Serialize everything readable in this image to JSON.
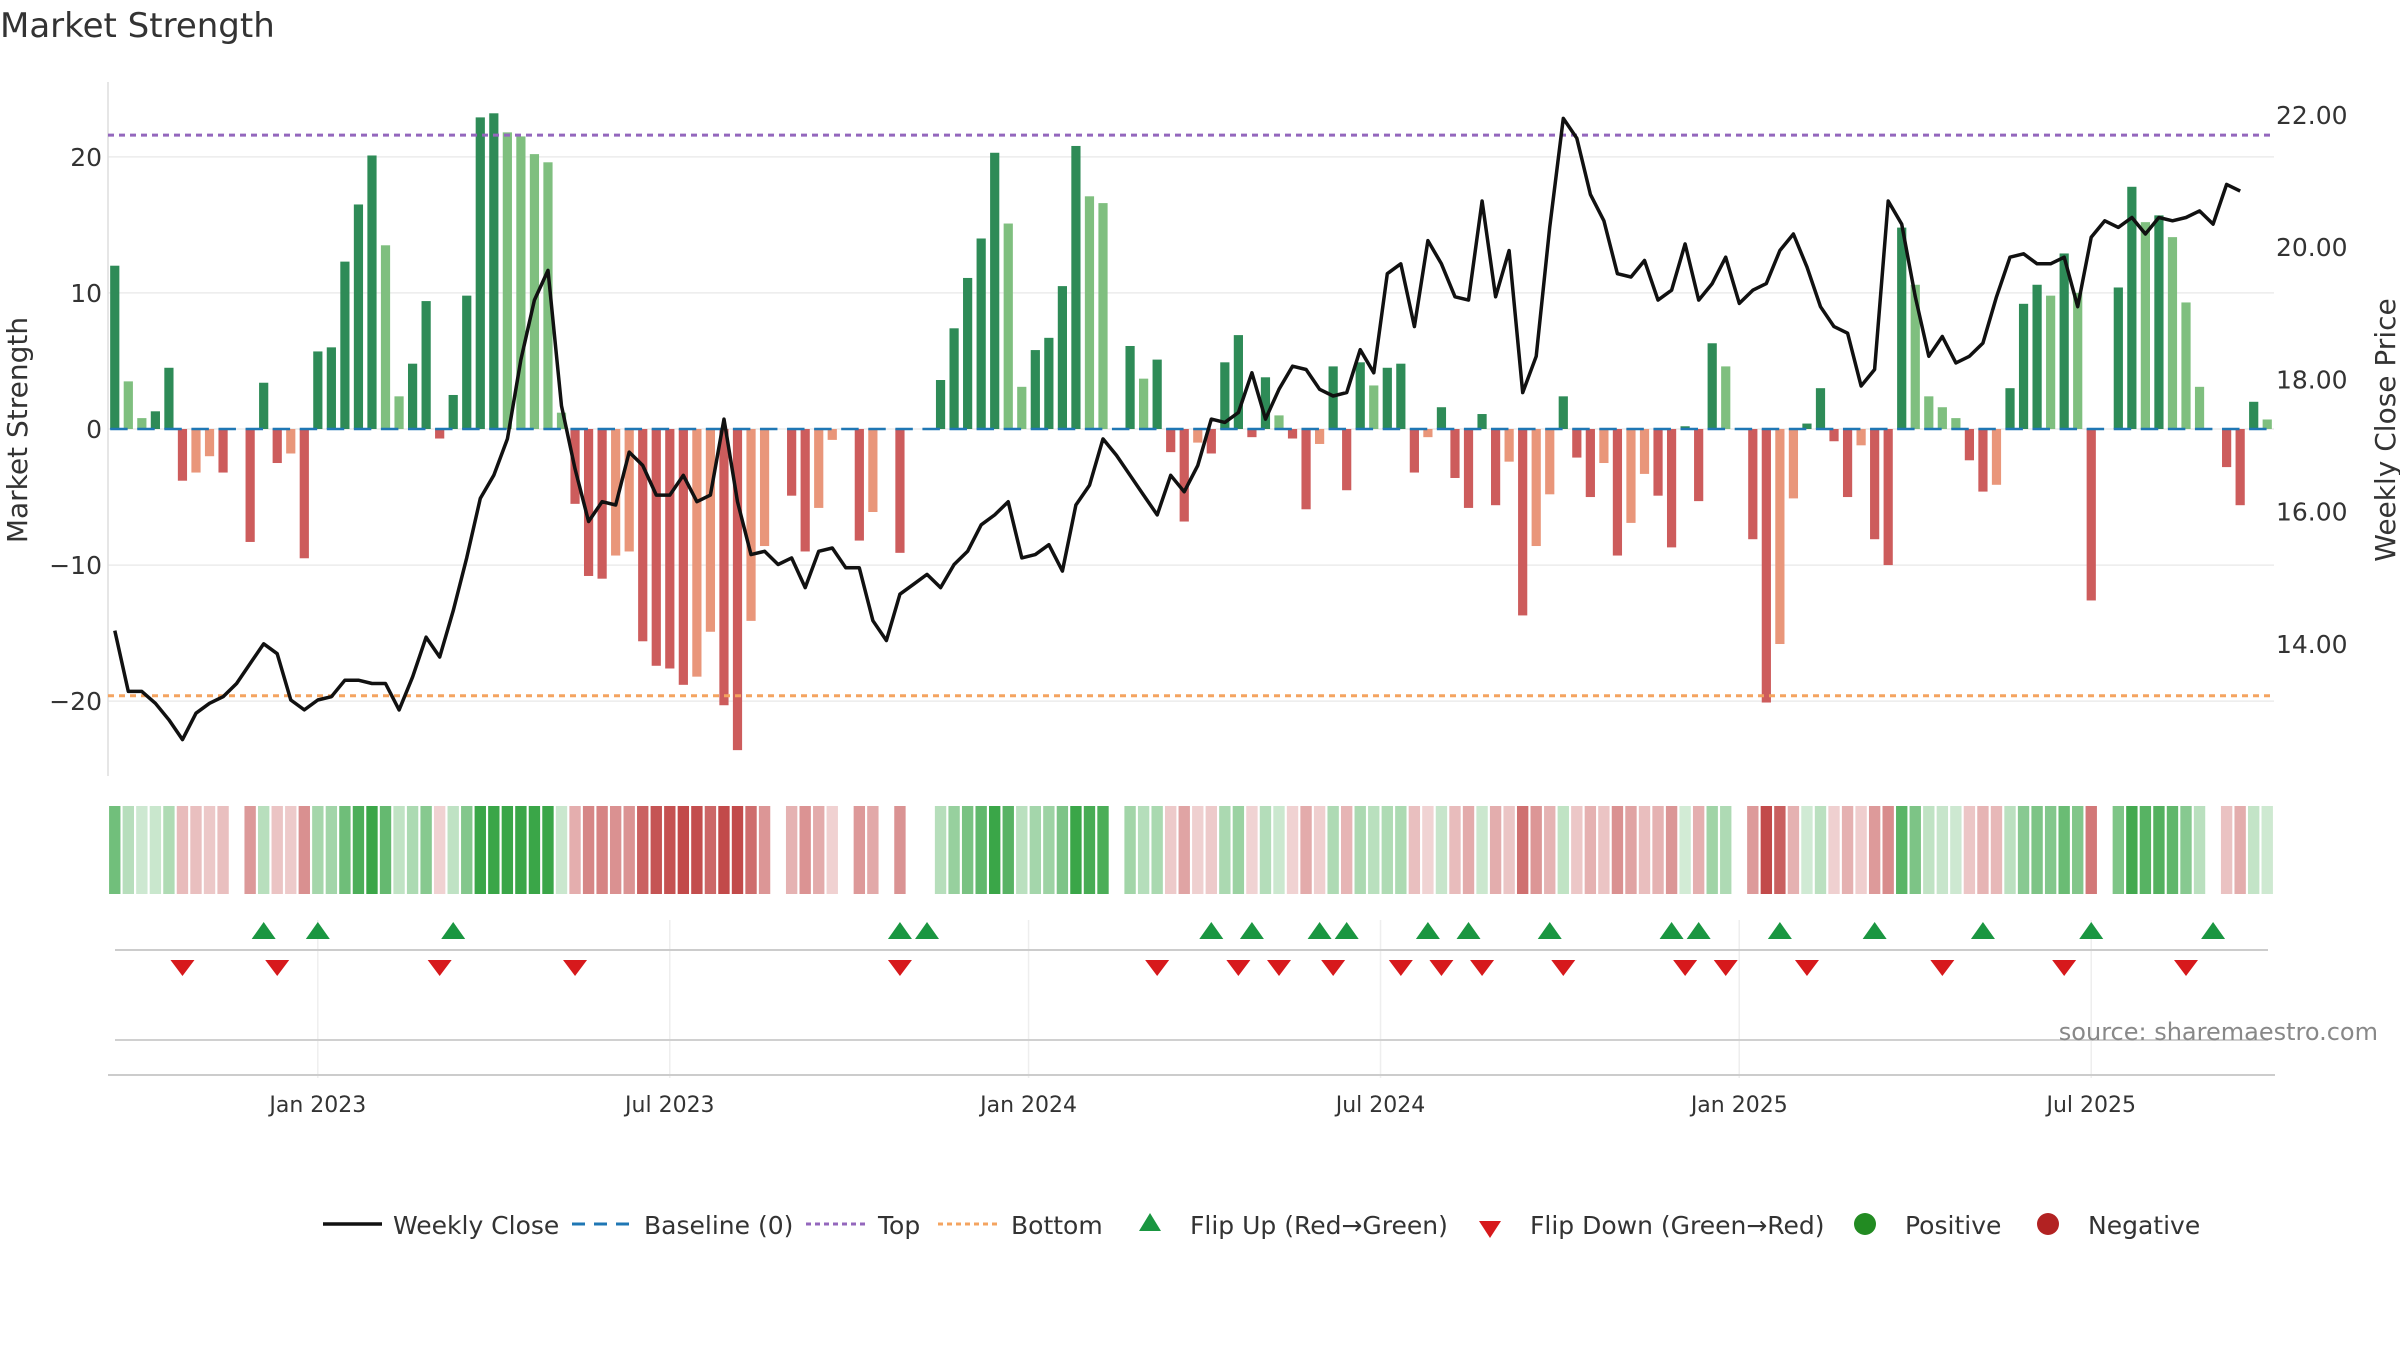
{
  "chart_data": {
    "type": "bar",
    "title": "Market Strength",
    "ylabel": "Market Strength",
    "y2label": "Weekly Close Price",
    "ylim": [
      -25.5,
      25.5
    ],
    "y2lim": [
      12.0,
      22.5
    ],
    "yticks": [
      20,
      10,
      0,
      -10,
      -20
    ],
    "ytick_labels": [
      "20",
      "10",
      "0",
      "−10",
      "−20"
    ],
    "y2ticks": [
      22,
      20,
      18,
      16,
      14
    ],
    "y2tick_labels": [
      "22.00",
      "20.00",
      "18.00",
      "16.00",
      "14.00"
    ],
    "xtick_labels": [
      "Jan 2023",
      "Jul 2023",
      "Jan 2024",
      "Jul 2024",
      "Jan 2025",
      "Jul 2025"
    ],
    "xtick_weeks": [
      15,
      41,
      67.5,
      93.5,
      120,
      146
    ],
    "top_level": 21.6,
    "bottom_level": -19.6,
    "source": "source: sharemaestro.com",
    "legend": [
      "Weekly Close",
      "Baseline (0)",
      "Top",
      "Bottom",
      "Flip Up (Red→Green)",
      "Flip Down (Green→Red)",
      "Positive",
      "Negative"
    ],
    "colors": {
      "pos_strong": "#2e8b57",
      "pos_light": "#7fbf7f",
      "neg_strong": "#cd5c5c",
      "neg_light": "#e9967a",
      "price": "#111111",
      "baseline": "#1f77b4",
      "top": "#9467bd",
      "bottom": "#f4a460",
      "flip_up": "#1a9641",
      "flip_down": "#d7191c",
      "positive": "#228b22",
      "negative": "#b22222"
    },
    "strength": [
      12,
      3.5,
      0.8,
      1.3,
      4.5,
      -3.8,
      -3.2,
      -2,
      -3.2,
      0,
      -8.3,
      3.4,
      -2.5,
      -1.8,
      -9.5,
      5.7,
      6,
      12.3,
      16.5,
      20.1,
      13.5,
      2.4,
      4.8,
      9.4,
      -0.7,
      2.5,
      9.8,
      22.9,
      23.2,
      21.8,
      21.5,
      20.2,
      19.6,
      1.2,
      -5.5,
      -10.8,
      -11,
      -9.3,
      -9,
      -15.6,
      -17.4,
      -17.6,
      -18.8,
      -18.2,
      -14.9,
      -20.3,
      -23.6,
      -14.1,
      -8.6,
      0,
      -4.9,
      -9,
      -5.8,
      -0.8,
      0,
      -8.2,
      -6.1,
      0,
      -9.1,
      0,
      0,
      3.6,
      7.4,
      11.1,
      14,
      20.3,
      15.1,
      3.1,
      5.8,
      6.7,
      10.5,
      20.8,
      17.1,
      16.6,
      0,
      6.1,
      3.7,
      5.1,
      -1.7,
      -6.8,
      -1,
      -1.8,
      4.9,
      6.9,
      -0.6,
      3.8,
      1,
      -0.7,
      -5.9,
      -1.1,
      4.6,
      -4.5,
      4.9,
      3.2,
      4.5,
      4.8,
      -3.2,
      -0.6,
      1.6,
      -3.6,
      -5.8,
      1.1,
      -5.6,
      -2.4,
      -13.7,
      -8.6,
      -4.8,
      2.4,
      -2.1,
      -5,
      -2.5,
      -9.3,
      -6.9,
      -3.3,
      -4.9,
      -8.7,
      0.2,
      -5.3,
      6.3,
      4.6,
      0,
      -8.1,
      -20.1,
      -15.8,
      -5.1,
      0.4,
      3,
      -0.9,
      -5,
      -1.2,
      -8.1,
      -10,
      14.8,
      10.6,
      2.4,
      1.6,
      0.8,
      -2.3,
      -4.6,
      -4.1,
      3,
      9.2,
      10.6,
      9.8,
      12.9,
      10,
      -12.6,
      0,
      10.4,
      17.8,
      15.2,
      15.7,
      14.1,
      9.3,
      3.1,
      0,
      -2.8,
      -5.6,
      2,
      0.7
    ],
    "price": [
      14.2,
      13.28,
      13.28,
      13.1,
      12.85,
      12.55,
      12.95,
      13.1,
      13.2,
      13.4,
      13.7,
      14,
      13.85,
      13.15,
      13,
      13.15,
      13.2,
      13.45,
      13.45,
      13.4,
      13.4,
      13,
      13.5,
      14.1,
      13.8,
      14.5,
      15.3,
      16.2,
      16.55,
      17.1,
      18.3,
      19.2,
      19.65,
      17.6,
      16.65,
      15.85,
      16.15,
      16.1,
      16.9,
      16.7,
      16.25,
      16.25,
      16.55,
      16.15,
      16.25,
      17.4,
      16.15,
      15.35,
      15.4,
      15.2,
      15.3,
      14.85,
      15.4,
      15.45,
      15.15,
      15.15,
      14.35,
      14.05,
      14.75,
      14.9,
      15.05,
      14.85,
      15.2,
      15.4,
      15.8,
      15.95,
      16.15,
      15.3,
      15.35,
      15.5,
      15.1,
      16.1,
      16.4,
      17.1,
      16.85,
      16.55,
      16.25,
      15.95,
      16.55,
      16.3,
      16.7,
      17.4,
      17.35,
      17.5,
      18.1,
      17.4,
      17.85,
      18.2,
      18.15,
      17.85,
      17.75,
      17.8,
      18.45,
      18.1,
      19.6,
      19.75,
      18.8,
      20.1,
      19.75,
      19.25,
      19.2,
      20.7,
      19.25,
      19.95,
      17.8,
      18.35,
      20.3,
      21.95,
      21.65,
      20.8,
      20.4,
      19.6,
      19.55,
      19.8,
      19.2,
      19.35,
      20.05,
      19.2,
      19.45,
      19.85,
      19.15,
      19.35,
      19.45,
      19.95,
      20.2,
      19.7,
      19.1,
      18.8,
      18.7,
      17.9,
      18.15,
      20.7,
      20.35,
      19.25,
      18.35,
      18.65,
      18.25,
      18.35,
      18.55,
      19.25,
      19.85,
      19.9,
      19.75,
      19.75,
      19.85,
      19.1,
      20.15,
      20.4,
      20.3,
      20.45,
      20.2,
      20.45,
      20.4,
      20.45,
      20.55,
      20.35,
      20.95,
      20.85
    ],
    "flip_up_weeks": [
      11,
      15,
      25,
      58,
      60,
      81,
      84,
      89,
      91,
      97,
      100,
      106,
      115,
      117,
      123,
      130,
      138,
      146,
      155
    ],
    "flip_down_weeks": [
      5,
      12,
      24,
      34,
      58,
      77,
      83,
      86,
      90,
      95,
      98,
      101,
      107,
      116,
      119,
      125,
      135,
      144,
      153
    ]
  }
}
